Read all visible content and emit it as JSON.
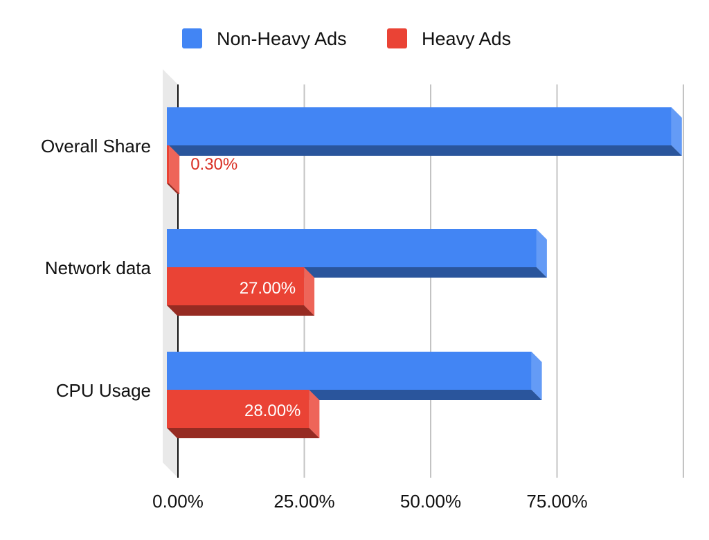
{
  "chart_data": {
    "type": "bar",
    "orientation": "horizontal",
    "style": "3d",
    "categories": [
      "Overall Share",
      "Network data",
      "CPU Usage"
    ],
    "series": [
      {
        "name": "Non-Heavy Ads",
        "values": [
          99.7,
          73.0,
          72.0
        ],
        "color": "#4285f4",
        "data_labels": [
          "",
          "",
          ""
        ]
      },
      {
        "name": "Heavy Ads",
        "values": [
          0.3,
          27.0,
          28.0
        ],
        "color": "#ea4335",
        "data_labels": [
          "0.30%",
          "27.00%",
          "28.00%"
        ]
      }
    ],
    "x_ticks": [
      "0.00%",
      "25.00%",
      "50.00%",
      "75.00%"
    ],
    "xlim": [
      0,
      100
    ],
    "grid": true,
    "legend_position": "top",
    "title": "",
    "xlabel": "",
    "ylabel": ""
  }
}
